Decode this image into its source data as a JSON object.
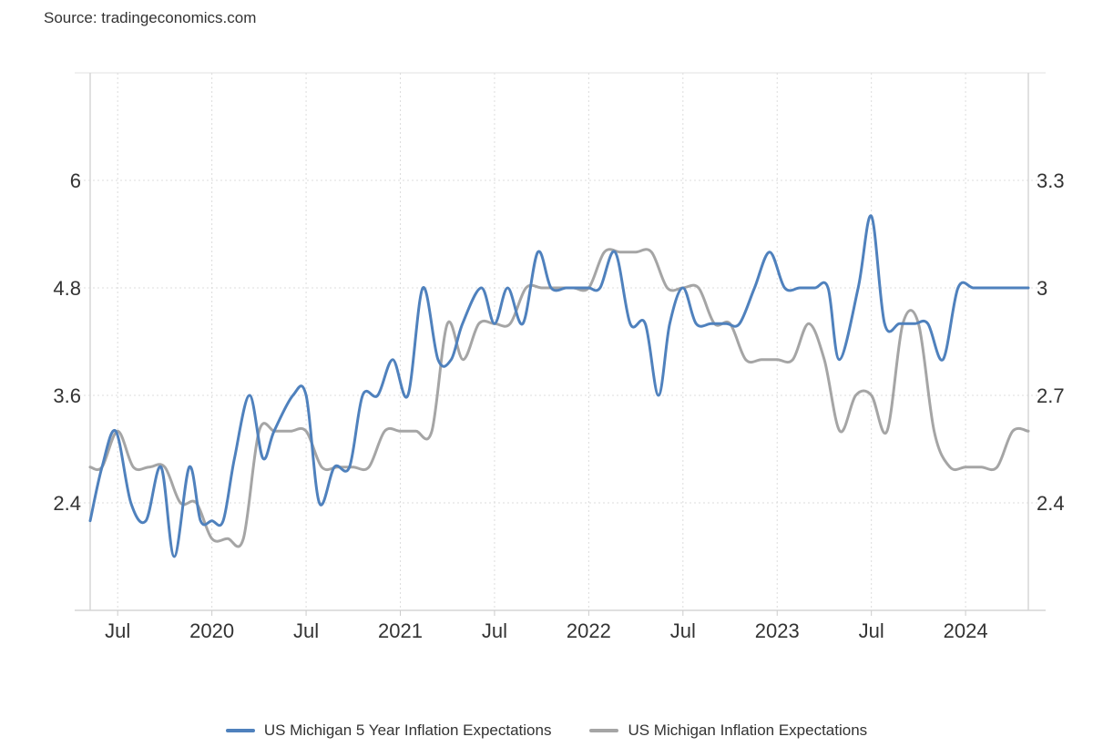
{
  "source": "Source: tradingeconomics.com",
  "chart_data": {
    "type": "line",
    "title": "",
    "x_range": [
      2019.354,
      2024.333
    ],
    "x_ticks": [
      {
        "x": 2019.5,
        "label": "Jul"
      },
      {
        "x": 2020.0,
        "label": "2020"
      },
      {
        "x": 2020.5,
        "label": "Jul"
      },
      {
        "x": 2021.0,
        "label": "2021"
      },
      {
        "x": 2021.5,
        "label": "Jul"
      },
      {
        "x": 2022.0,
        "label": "2022"
      },
      {
        "x": 2022.5,
        "label": "Jul"
      },
      {
        "x": 2023.0,
        "label": "2023"
      },
      {
        "x": 2023.5,
        "label": "Jul"
      },
      {
        "x": 2024.0,
        "label": "2024"
      }
    ],
    "y_left": {
      "min": 1.2,
      "max": 7.2,
      "ticks": [
        "2.4",
        "3.6",
        "4.8",
        "6"
      ],
      "tick_values": [
        2.4,
        3.6,
        4.8,
        6
      ]
    },
    "y_right": {
      "min": 2.1,
      "max": 3.6,
      "ticks": [
        "2.4",
        "2.7",
        "3",
        "3.3"
      ],
      "tick_values": [
        2.4,
        2.7,
        3.0,
        3.3
      ]
    },
    "grid": true,
    "legend_position": "bottom-center",
    "series": [
      {
        "name": "US Michigan 5 Year Inflation Expectations",
        "axis": "left",
        "color": "#4f81bd",
        "x": [
          2019.354,
          2019.417,
          2019.49,
          2019.57,
          2019.65,
          2019.73,
          2019.8,
          2019.88,
          2019.94,
          2020.0,
          2020.06,
          2020.12,
          2020.2,
          2020.27,
          2020.33,
          2020.43,
          2020.5,
          2020.57,
          2020.65,
          2020.73,
          2020.8,
          2020.88,
          2020.96,
          2021.04,
          2021.12,
          2021.2,
          2021.27,
          2021.33,
          2021.43,
          2021.5,
          2021.57,
          2021.65,
          2021.73,
          2021.8,
          2021.88,
          2021.94,
          2022.0,
          2022.06,
          2022.14,
          2022.22,
          2022.3,
          2022.37,
          2022.43,
          2022.5,
          2022.57,
          2022.65,
          2022.73,
          2022.8,
          2022.88,
          2022.96,
          2023.04,
          2023.12,
          2023.2,
          2023.27,
          2023.33,
          2023.43,
          2023.5,
          2023.57,
          2023.65,
          2023.73,
          2023.8,
          2023.88,
          2023.96,
          2024.04,
          2024.12,
          2024.2,
          2024.27,
          2024.333
        ],
        "values": [
          2.2,
          2.8,
          3.2,
          2.4,
          2.2,
          2.8,
          1.8,
          2.8,
          2.2,
          2.2,
          2.2,
          2.9,
          3.6,
          2.9,
          3.2,
          3.6,
          3.6,
          2.4,
          2.8,
          2.8,
          3.6,
          3.6,
          4.0,
          3.6,
          4.8,
          4.0,
          4.0,
          4.4,
          4.8,
          4.4,
          4.8,
          4.4,
          5.2,
          4.8,
          4.8,
          4.8,
          4.8,
          4.8,
          5.2,
          4.4,
          4.4,
          3.6,
          4.4,
          4.8,
          4.4,
          4.4,
          4.4,
          4.4,
          4.8,
          5.2,
          4.8,
          4.8,
          4.8,
          4.8,
          4.0,
          4.8,
          5.6,
          4.4,
          4.4,
          4.4,
          4.4,
          4.0,
          4.8,
          4.8,
          4.8,
          4.8,
          4.8,
          4.8
        ]
      },
      {
        "name": "US Michigan Inflation Expectations",
        "axis": "right",
        "color": "#a5a5a5",
        "x": [
          2019.354,
          2019.417,
          2019.5,
          2019.583,
          2019.667,
          2019.75,
          2019.833,
          2019.917,
          2020.0,
          2020.083,
          2020.167,
          2020.25,
          2020.333,
          2020.417,
          2020.5,
          2020.583,
          2020.667,
          2020.75,
          2020.833,
          2020.917,
          2021.0,
          2021.083,
          2021.167,
          2021.25,
          2021.333,
          2021.417,
          2021.5,
          2021.583,
          2021.667,
          2021.75,
          2021.833,
          2021.917,
          2022.0,
          2022.083,
          2022.167,
          2022.25,
          2022.333,
          2022.417,
          2022.5,
          2022.583,
          2022.667,
          2022.75,
          2022.833,
          2022.917,
          2023.0,
          2023.083,
          2023.167,
          2023.25,
          2023.333,
          2023.417,
          2023.5,
          2023.583,
          2023.667,
          2023.75,
          2023.833,
          2023.917,
          2024.0,
          2024.083,
          2024.167,
          2024.25,
          2024.333
        ],
        "values": [
          2.5,
          2.5,
          2.6,
          2.5,
          2.5,
          2.5,
          2.4,
          2.4,
          2.3,
          2.3,
          2.3,
          2.6,
          2.6,
          2.6,
          2.6,
          2.5,
          2.5,
          2.5,
          2.5,
          2.6,
          2.6,
          2.6,
          2.6,
          2.9,
          2.8,
          2.9,
          2.9,
          2.9,
          3.0,
          3.0,
          3.0,
          3.0,
          3.0,
          3.1,
          3.1,
          3.1,
          3.1,
          3.0,
          3.0,
          3.0,
          2.9,
          2.9,
          2.8,
          2.8,
          2.8,
          2.8,
          2.9,
          2.8,
          2.6,
          2.7,
          2.7,
          2.6,
          2.9,
          2.9,
          2.6,
          2.5,
          2.5,
          2.5,
          2.5,
          2.6,
          2.6
        ]
      }
    ]
  }
}
